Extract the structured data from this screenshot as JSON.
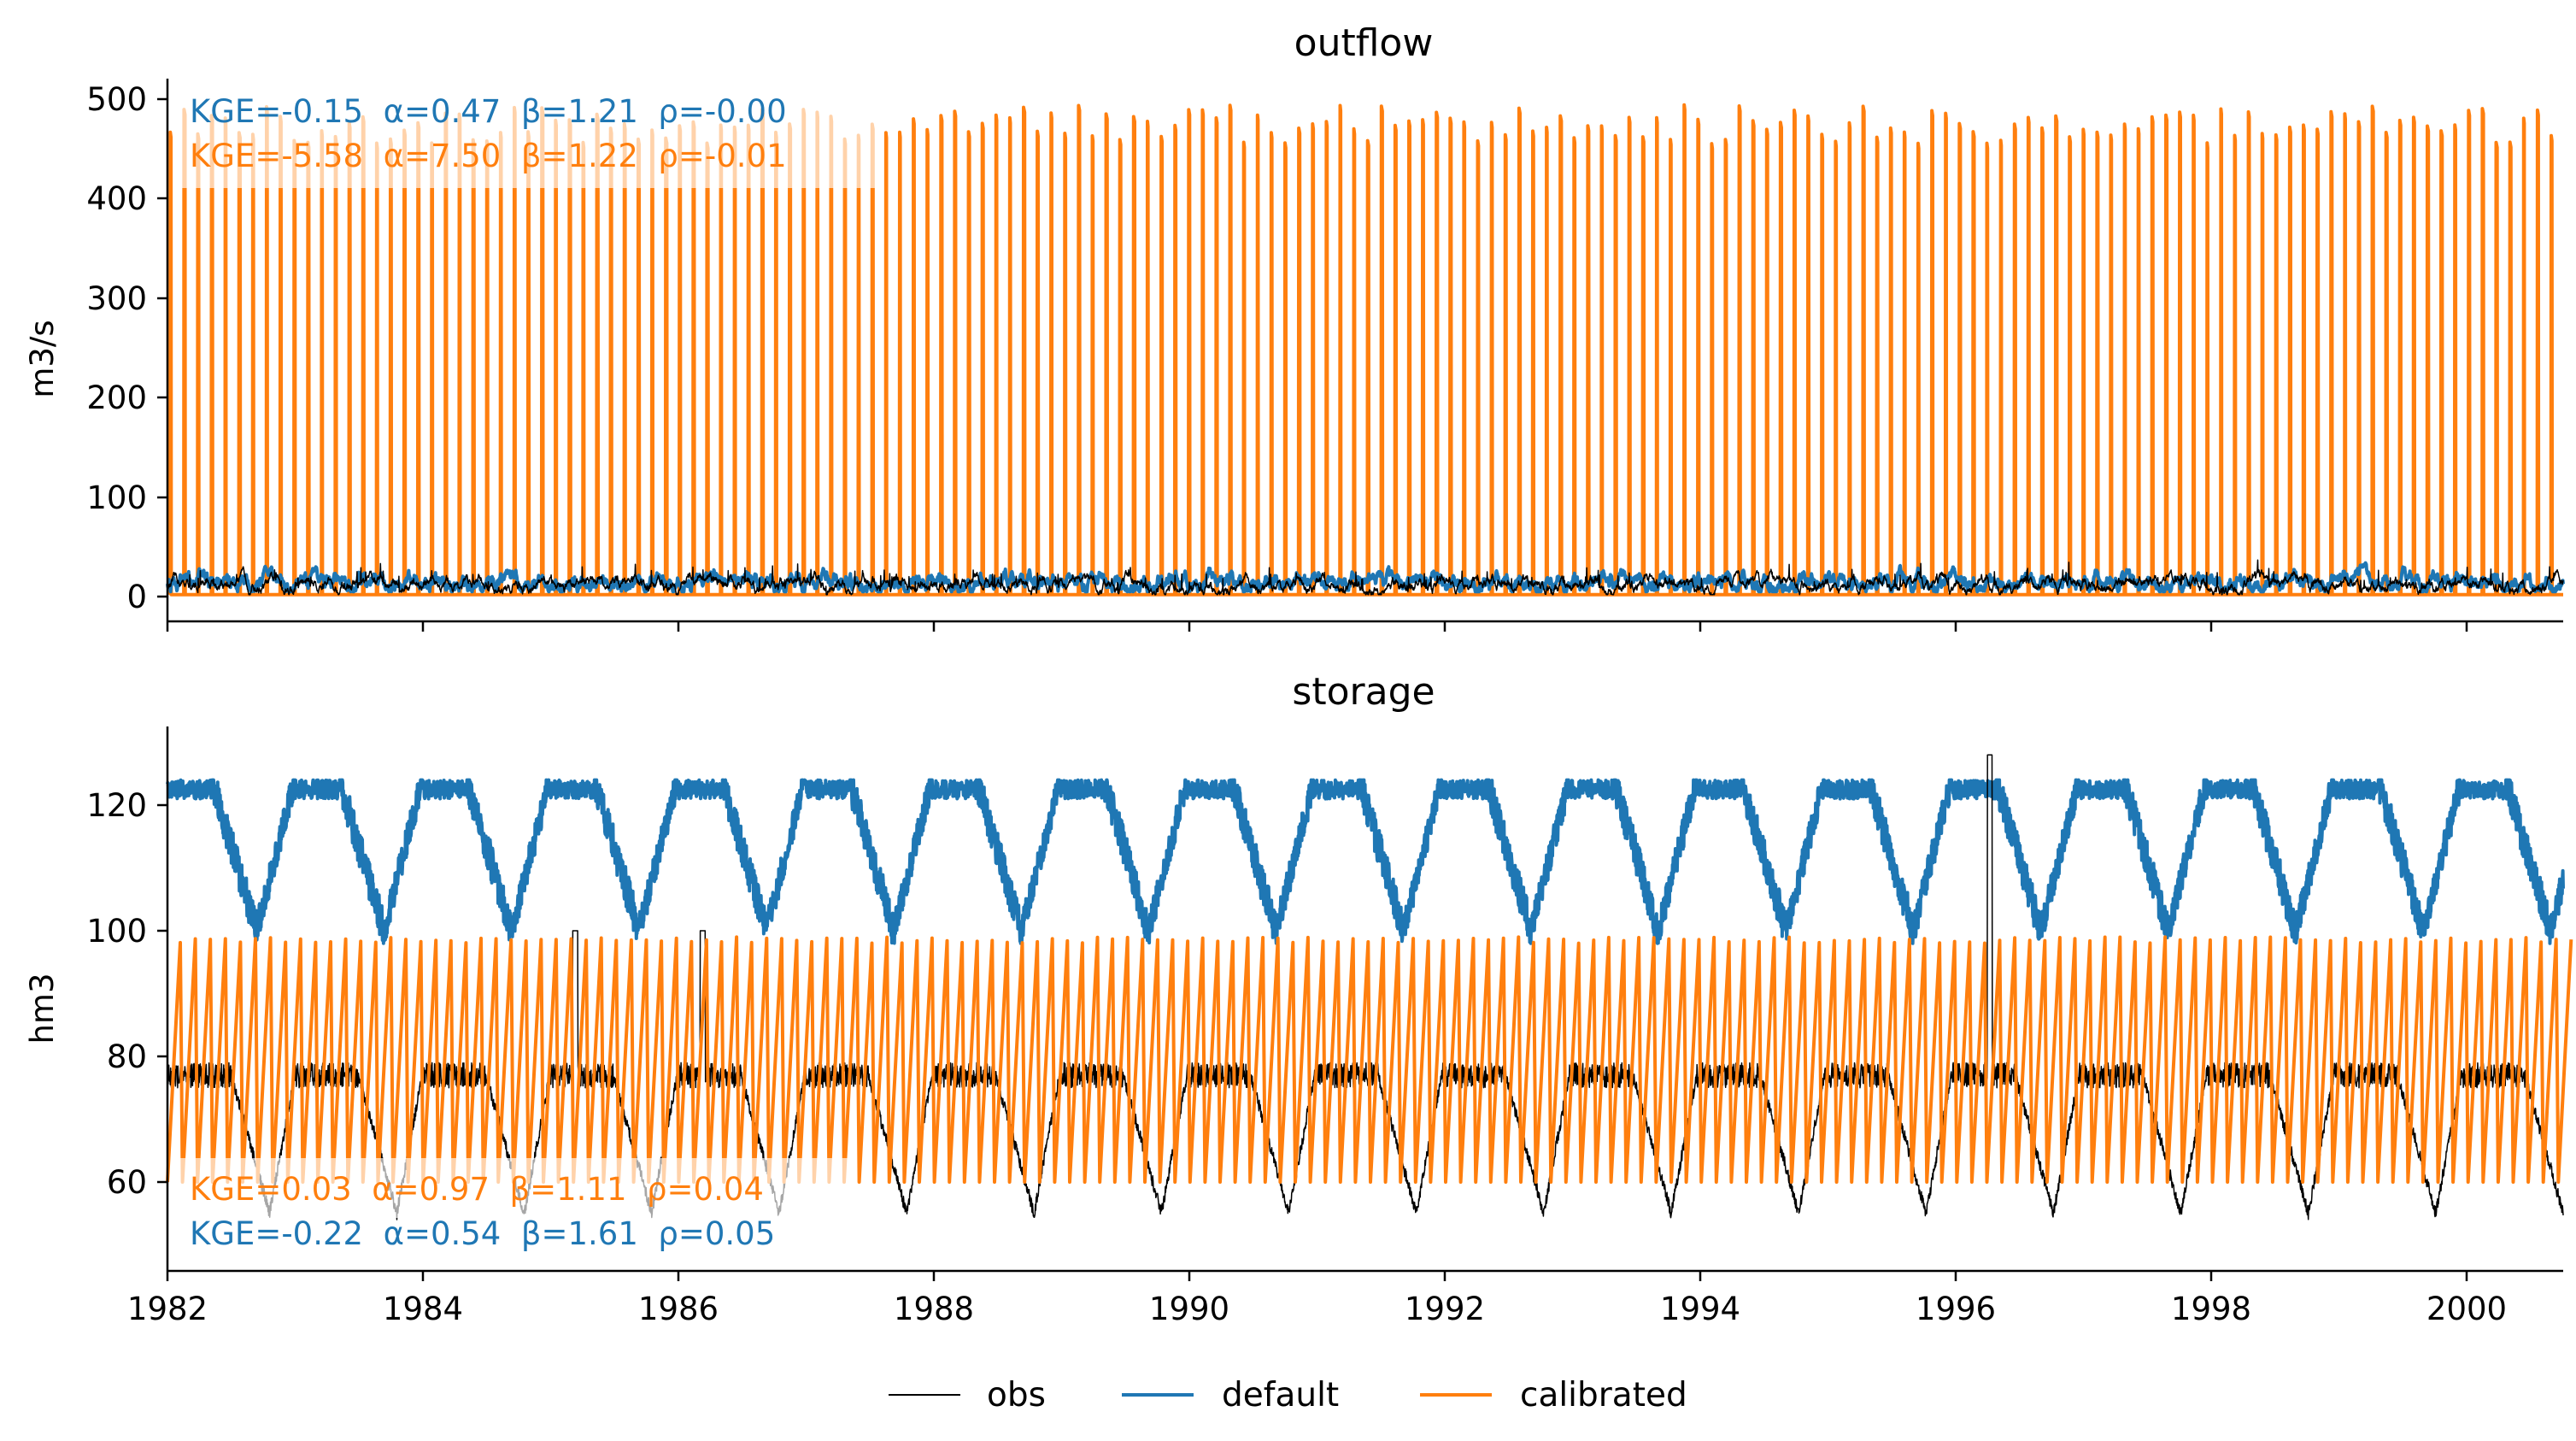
{
  "colors": {
    "obs": "#000000",
    "default": "#1f77b4",
    "calibrated": "#ff7f0e"
  },
  "chart_data": [
    {
      "type": "line",
      "title": "outflow",
      "ylabel": "m3/s",
      "xlabel": "",
      "xlim": [
        1982,
        2000.8
      ],
      "ylim": [
        -25,
        520
      ],
      "yticks": [
        "0",
        "100",
        "200",
        "300",
        "400",
        "500"
      ],
      "xtick_labels_shown": false,
      "series": [
        {
          "name": "obs",
          "values": "daily outflow mostly between 2 and 30 m3/s"
        },
        {
          "name": "default",
          "values": "outflow mostly between 5 and 35 m3/s"
        },
        {
          "name": "calibrated",
          "values": "spikes to about 460-495 m3/s roughly every 1.3 months, near 0 between spikes"
        }
      ],
      "annotations": [
        {
          "series": "default",
          "text": "KGE=-0.15  α=0.47  β=1.21  ρ=-0.00"
        },
        {
          "series": "calibrated",
          "text": "KGE=-5.58  α=7.50  β=1.22  ρ=-0.01"
        }
      ],
      "legend": "none"
    },
    {
      "type": "line",
      "title": "storage",
      "ylabel": "hm3",
      "xlabel": "",
      "xlim": [
        1982,
        2000.8
      ],
      "ylim": [
        45,
        132
      ],
      "yticks": [
        "60",
        "80",
        "100",
        "120"
      ],
      "xticks": [
        "1982",
        "1984",
        "1986",
        "1988",
        "1990",
        "1992",
        "1994",
        "1996",
        "1998",
        "2000"
      ],
      "series": [
        {
          "name": "obs",
          "values": "fluctuates 50-128 hm3, ~76-78 plateau, yearly drawdowns to 52-60, spikes to 100 (1985.2, 1986.2) and 128 (1996.3)"
        },
        {
          "name": "default",
          "values": "fluctuates between 98 and 124 hm3 with annual drawdowns"
        },
        {
          "name": "calibrated",
          "values": "sawtooth between 60 and 99 hm3, period about 1.4 months"
        }
      ],
      "annotations": [
        {
          "series": "calibrated",
          "text": "KGE=0.03  α=0.97  β=1.11  ρ=0.04"
        },
        {
          "series": "default",
          "text": "KGE=-0.22  α=0.54  β=1.61  ρ=0.05"
        }
      ],
      "legend": "none"
    }
  ],
  "legend": {
    "position": "bottom-center",
    "items": [
      {
        "name": "obs",
        "label": "obs"
      },
      {
        "name": "default",
        "label": "default"
      },
      {
        "name": "calibrated",
        "label": "calibrated"
      }
    ]
  }
}
